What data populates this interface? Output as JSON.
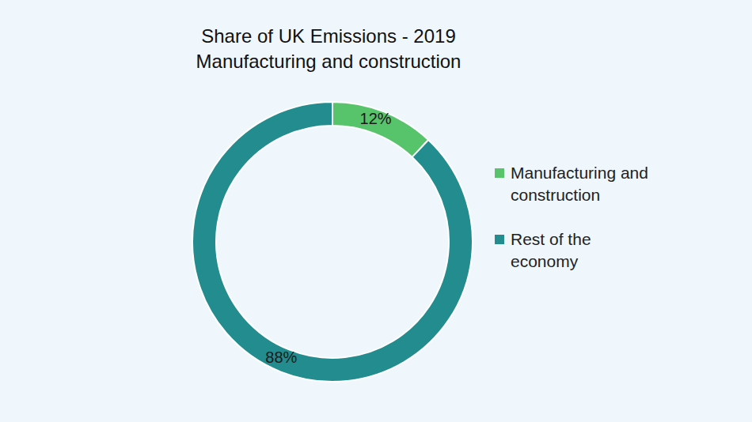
{
  "chart_data": {
    "type": "pie",
    "title": "Share of UK Emissions - 2019",
    "subtitle": "Manufacturing and construction",
    "categories": [
      "Manufacturing and construction",
      "Rest of the economy"
    ],
    "values": [
      12,
      88
    ],
    "value_labels": [
      "12%",
      "88%"
    ],
    "colors": [
      "#57c46b",
      "#228c8e"
    ],
    "data_labels": true,
    "legend": "right"
  }
}
